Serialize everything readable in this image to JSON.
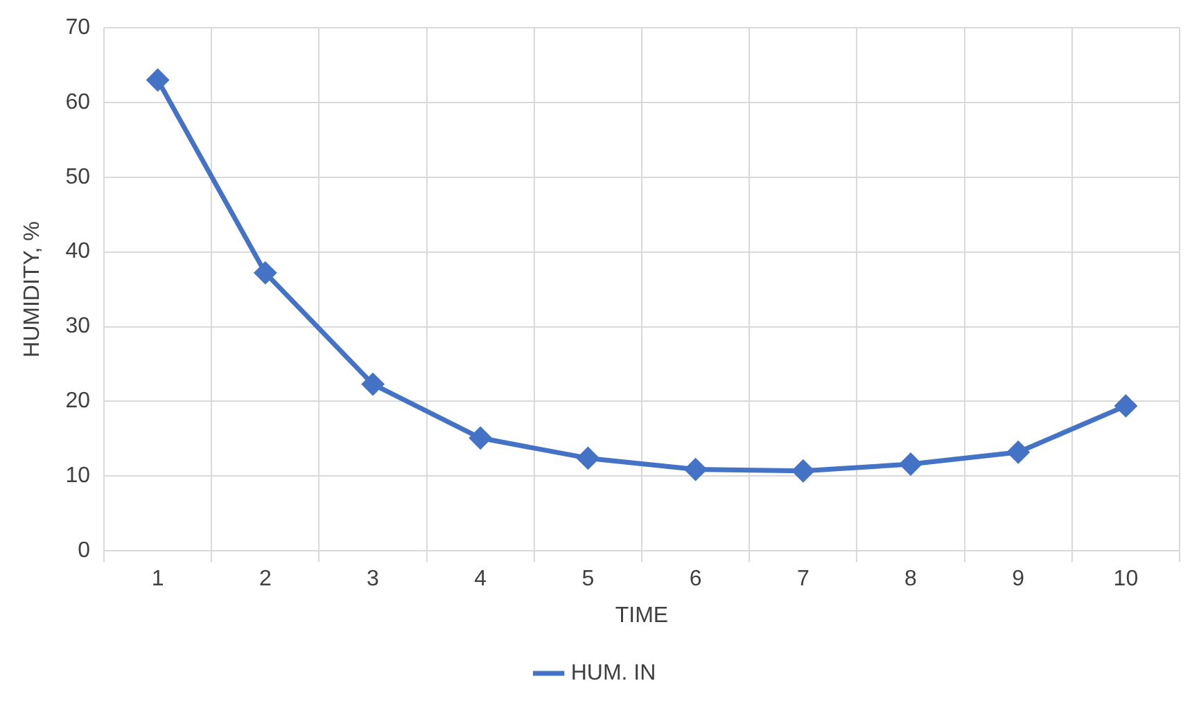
{
  "chart_data": {
    "type": "line",
    "xlabel": "TIME",
    "ylabel": "HUMIDITY, %",
    "categories": [
      "1",
      "2",
      "3",
      "4",
      "5",
      "6",
      "7",
      "8",
      "9",
      "10"
    ],
    "series": [
      {
        "name": "HUM. IN",
        "color": "#4472c4",
        "values": [
          63,
          37.2,
          22.3,
          15.1,
          12.4,
          10.9,
          10.7,
          11.6,
          13.2,
          19.4
        ]
      }
    ],
    "ylim": [
      0,
      70
    ],
    "yticks": [
      0,
      10,
      20,
      30,
      40,
      50,
      60,
      70
    ],
    "grid": true,
    "legend": "bottom",
    "marker": "diamond",
    "line_style": "solid"
  }
}
